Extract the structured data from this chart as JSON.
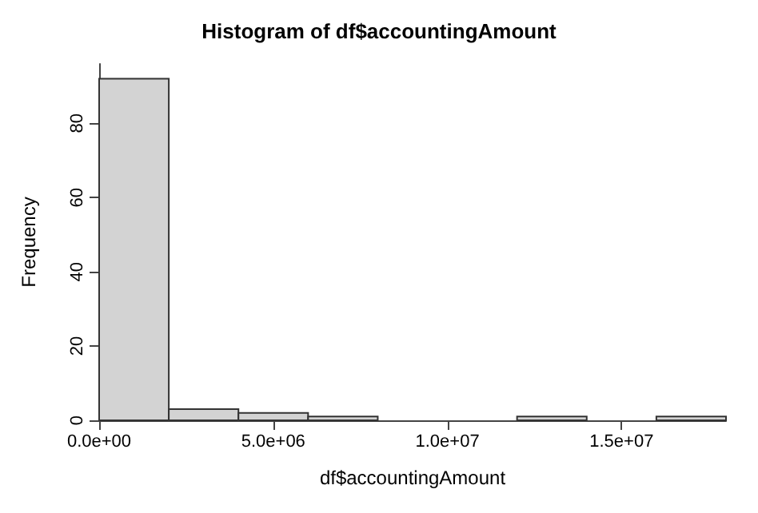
{
  "chart_data": {
    "type": "histogram",
    "title": "Histogram of df$accountingAmount",
    "xlabel": "df$accountingAmount",
    "ylabel": "Frequency",
    "bins": [
      0,
      2000000,
      4000000,
      6000000,
      8000000,
      10000000,
      12000000,
      14000000,
      16000000,
      18000000
    ],
    "values": [
      92,
      3,
      2,
      1,
      0,
      0,
      1,
      0,
      1
    ],
    "color": "#d3d3d3",
    "xlim": [
      0,
      18000000
    ],
    "xticks": [
      {
        "value": 0,
        "label": "0.0e+00"
      },
      {
        "value": 5000000,
        "label": "5.0e+06"
      },
      {
        "value": 10000000,
        "label": "1.0e+07"
      },
      {
        "value": 15000000,
        "label": "1.5e+07"
      }
    ],
    "ylim": [
      0,
      96
    ],
    "yticks": [
      0,
      20,
      40,
      60,
      80
    ],
    "grid": false
  }
}
